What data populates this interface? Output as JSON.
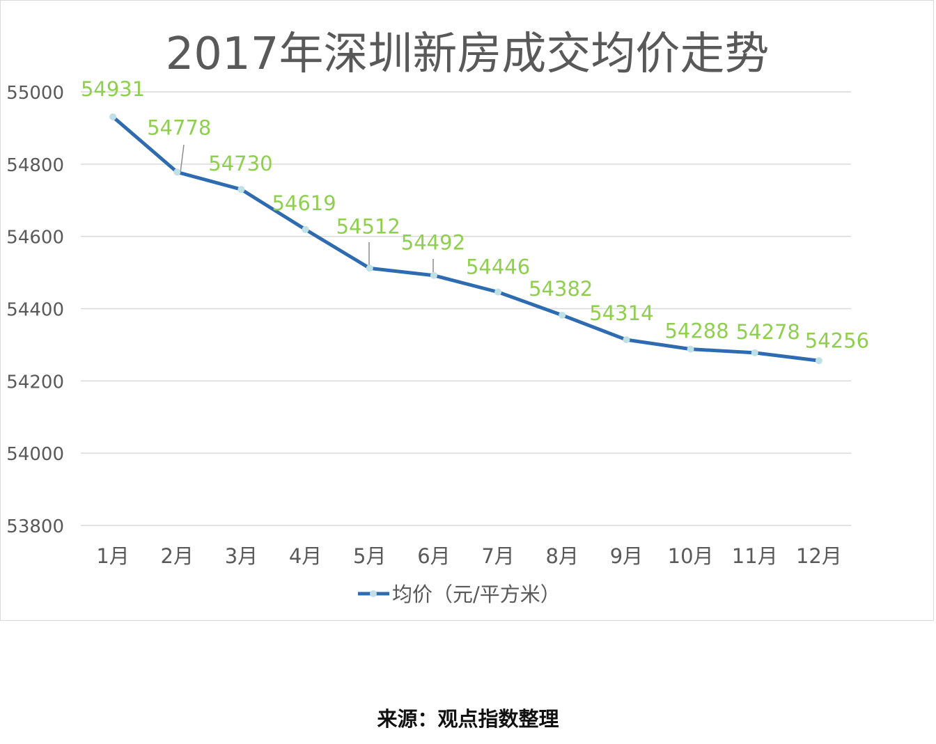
{
  "source_note": "来源：观点指数整理",
  "colors": {
    "line": "#2e6bb0",
    "marker": "#bfe0e6",
    "data_label": "#8fcf4f",
    "grid": "#d9d9d9",
    "axis_text": "#595959",
    "title": "#595959"
  },
  "chart_data": {
    "type": "line",
    "title": "2017年深圳新房成交均价走势",
    "categories": [
      "1月",
      "2月",
      "3月",
      "4月",
      "5月",
      "6月",
      "7月",
      "8月",
      "9月",
      "10月",
      "11月",
      "12月"
    ],
    "series": [
      {
        "name": "均价（元/平方米）",
        "values": [
          54931,
          54778,
          54730,
          54619,
          54512,
          54492,
          54446,
          54382,
          54314,
          54288,
          54278,
          54256
        ]
      }
    ],
    "yticks": [
      "55000",
      "54800",
      "54600",
      "54400",
      "54200",
      "54000",
      "53800"
    ],
    "ylim": [
      53800,
      55000
    ],
    "grid": true,
    "legend_position": "bottom",
    "data_labels": true
  }
}
